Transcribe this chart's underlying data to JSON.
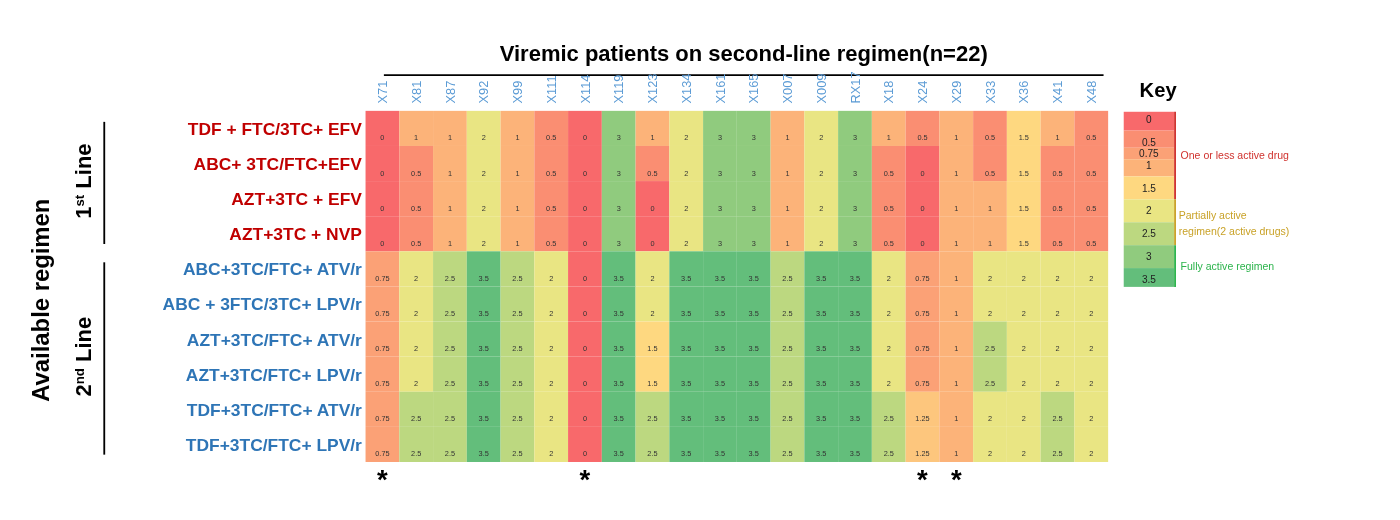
{
  "chart_data": {
    "type": "heatmap",
    "title": "Viremic patients on second-line regimen(n=22)",
    "ylabel": "Available regimen",
    "clabel": "Key",
    "categories": [
      "X71",
      "X81",
      "X87",
      "X92",
      "X99",
      "X111",
      "X114",
      "X119",
      "X123",
      "X134",
      "X161",
      "X165",
      "X007",
      "X009",
      "RX17",
      "X18",
      "X24",
      "X29",
      "X33",
      "X36",
      "X41",
      "X48"
    ],
    "y_categories": [
      "TDF + FTC/3TC+ EFV",
      "ABC+ 3TC/FTC+EFV",
      "AZT+3TC + EFV",
      "AZT+3TC + NVP",
      "ABC+3TC/FTC+ ATV/r",
      "ABC + 3FTC/3TC+ LPV/r",
      "AZT+3TC/FTC+ ATV/r",
      "AZT+3TC/FTC+ LPV/r",
      "TDF+3TC/FTC+ ATV/r",
      "TDF+3TC/FTC+ LPV/r"
    ],
    "cells": [
      [
        0,
        1,
        1,
        2,
        1,
        0.5,
        0,
        3,
        1,
        2,
        3,
        3,
        1,
        2,
        3,
        1,
        0.5,
        1,
        0.5,
        1.5,
        1,
        0.5
      ],
      [
        0,
        0.5,
        1,
        2,
        1,
        0.5,
        0,
        3,
        0.5,
        2,
        3,
        3,
        1,
        2,
        3,
        0.5,
        0,
        1,
        0.5,
        1.5,
        0.5,
        0.5
      ],
      [
        0,
        0.5,
        1,
        2,
        1,
        0.5,
        0,
        3,
        0,
        2,
        3,
        3,
        1,
        2,
        3,
        0.5,
        0,
        1,
        1,
        1.5,
        0.5,
        0.5
      ],
      [
        0,
        0.5,
        1,
        2,
        1,
        0.5,
        0,
        3,
        0,
        2,
        3,
        3,
        1,
        2,
        3,
        0.5,
        0,
        1,
        1,
        1.5,
        0.5,
        0.5
      ],
      [
        0.75,
        2,
        2.5,
        3.5,
        2.5,
        2,
        0,
        3.5,
        2,
        3.5,
        3.5,
        3.5,
        2.5,
        3.5,
        3.5,
        2,
        0.75,
        1,
        2,
        2,
        2,
        2
      ],
      [
        0.75,
        2,
        2.5,
        3.5,
        2.5,
        2,
        0,
        3.5,
        2,
        3.5,
        3.5,
        3.5,
        2.5,
        3.5,
        3.5,
        2,
        0.75,
        1,
        2,
        2,
        2,
        2
      ],
      [
        0.75,
        2,
        2.5,
        3.5,
        2.5,
        2,
        0,
        3.5,
        1.5,
        3.5,
        3.5,
        3.5,
        2.5,
        3.5,
        3.5,
        2,
        0.75,
        1,
        2.5,
        2,
        2,
        2
      ],
      [
        0.75,
        2,
        2.5,
        3.5,
        2.5,
        2,
        0,
        3.5,
        1.5,
        3.5,
        3.5,
        3.5,
        2.5,
        3.5,
        3.5,
        2,
        0.75,
        1,
        2.5,
        2,
        2,
        2
      ],
      [
        0.75,
        2.5,
        2.5,
        3.5,
        2.5,
        2,
        0,
        3.5,
        2.5,
        3.5,
        3.5,
        3.5,
        2.5,
        3.5,
        3.5,
        2.5,
        1.25,
        1,
        2,
        2,
        2.5,
        2
      ],
      [
        0.75,
        2.5,
        2.5,
        3.5,
        2.5,
        2,
        0,
        3.5,
        2.5,
        3.5,
        3.5,
        3.5,
        2.5,
        3.5,
        3.5,
        2.5,
        1.25,
        1,
        2,
        2,
        2.5,
        2
      ]
    ],
    "data_labels": true,
    "clim": [
      0,
      3.5
    ],
    "cticks": [
      0,
      0.5,
      0.75,
      1,
      1.5,
      2,
      2.5,
      3,
      3.5
    ],
    "annotations": [
      "1$^{st}$ Line",
      "2$^{nd}$ Line",
      "One or less active drug",
      "Partially active regimen(2 active drugs)",
      "Fully active regimen",
      "*",
      "*",
      "*",
      "*"
    ]
  }
}
